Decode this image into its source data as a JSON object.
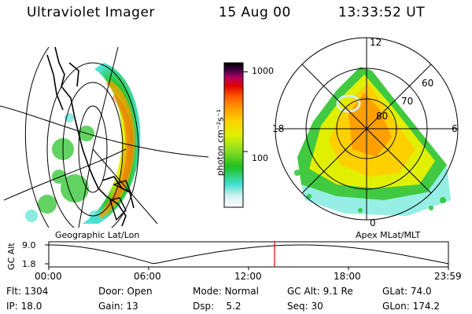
{
  "header": {
    "title": "Ultraviolet Imager",
    "date": "15 Aug 00",
    "time": "13:33:52 UT"
  },
  "geo_panel": {
    "caption": "Geographic Lat/Lon"
  },
  "polar_panel": {
    "caption": "Apex MLat/MLT",
    "mlt_labels": {
      "top": "12",
      "left": "18",
      "right": "6",
      "bottom": "0"
    },
    "lat_labels": [
      "60",
      "70",
      "80"
    ]
  },
  "colorbar": {
    "unit_label": "photon cm⁻²s⁻¹",
    "ticks": [
      {
        "label": "1000",
        "value": 1000
      },
      {
        "label": "100",
        "value": 100
      }
    ],
    "range": [
      20,
      1300
    ],
    "colors": [
      "#ffffff",
      "#d0f0f0",
      "#40e0d0",
      "#20c020",
      "#90e020",
      "#e0f000",
      "#ffd000",
      "#ffa000",
      "#ff6000",
      "#e00000",
      "#b00060",
      "#400040",
      "#000000"
    ]
  },
  "timeline": {
    "ylabel": "GC Alt",
    "yticks": [
      "9.0",
      "1.8"
    ],
    "xticks": [
      "00:00",
      "06:00",
      "12:00",
      "18:00",
      "23:59"
    ],
    "current_time_hours": 13.56,
    "marker_color": "#e00000"
  },
  "info": {
    "flt_label": "Flt:",
    "flt_value": "1304",
    "ip_label": "IP:",
    "ip_value": "18.0",
    "door_label": "Door:",
    "door_value": "Open",
    "gain_label": "Gain:",
    "gain_value": "13",
    "mode_label": "Mode:",
    "mode_value": "Normal",
    "dsp_label": "Dsp:",
    "dsp_value": "5.2",
    "gcalt_label": "GC Alt:",
    "gcalt_value": "9.1 Re",
    "seq_label": "Seq:",
    "seq_value": "30",
    "glat_label": "GLat:",
    "glat_value": "74.0",
    "glon_label": "GLon:",
    "glon_value": "174.2"
  }
}
